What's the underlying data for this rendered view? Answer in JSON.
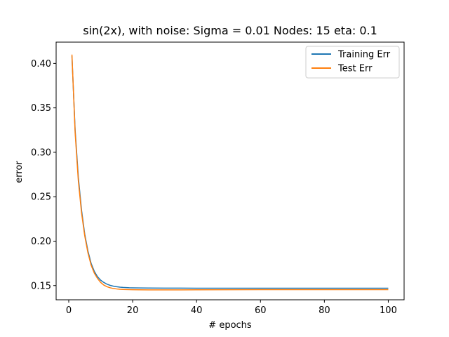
{
  "chart_data": {
    "type": "line",
    "title": "sin(2x), with noise: Sigma = 0.01 Nodes: 15 eta: 0.1",
    "xlabel": "# epochs",
    "ylabel": "error",
    "xlim": [
      -3.95,
      104.95
    ],
    "ylim": [
      0.134,
      0.424
    ],
    "xticks": [
      0,
      20,
      40,
      60,
      80,
      100
    ],
    "xtick_labels": [
      "0",
      "20",
      "40",
      "60",
      "80",
      "100"
    ],
    "yticks": [
      0.15,
      0.2,
      0.25,
      0.3,
      0.35,
      0.4
    ],
    "ytick_labels": [
      "0.15",
      "0.20",
      "0.25",
      "0.30",
      "0.35",
      "0.40"
    ],
    "grid": false,
    "legend_position": "top-right",
    "series": [
      {
        "name": "Training Err",
        "color": "#1f77b4",
        "x": [
          1,
          2,
          3,
          4,
          5,
          6,
          7,
          8,
          9,
          10,
          11,
          12,
          13,
          14,
          15,
          16,
          17,
          18,
          19,
          20,
          22,
          25,
          30,
          35,
          40,
          50,
          60,
          70,
          80,
          90,
          100
        ],
        "y": [
          0.408,
          0.325,
          0.272,
          0.235,
          0.208,
          0.189,
          0.175,
          0.166,
          0.16,
          0.156,
          0.1535,
          0.1515,
          0.1502,
          0.1493,
          0.1487,
          0.1482,
          0.1479,
          0.1477,
          0.1475,
          0.1474,
          0.1473,
          0.1472,
          0.1471,
          0.1471,
          0.147,
          0.147,
          0.147,
          0.147,
          0.147,
          0.147,
          0.147
        ]
      },
      {
        "name": "Test Err",
        "color": "#ff7f0e",
        "x": [
          1,
          2,
          3,
          4,
          5,
          6,
          7,
          8,
          9,
          10,
          11,
          12,
          13,
          14,
          15,
          16,
          17,
          18,
          19,
          20,
          22,
          25,
          30,
          35,
          40,
          50,
          60,
          70,
          80,
          90,
          100
        ],
        "y": [
          0.41,
          0.322,
          0.268,
          0.232,
          0.206,
          0.187,
          0.173,
          0.164,
          0.158,
          0.1535,
          0.1505,
          0.1487,
          0.1475,
          0.1467,
          0.1462,
          0.1459,
          0.1457,
          0.1456,
          0.1455,
          0.1454,
          0.1453,
          0.1452,
          0.1452,
          0.1452,
          0.1453,
          0.1454,
          0.1455,
          0.1455,
          0.1455,
          0.1455,
          0.1455
        ]
      }
    ]
  }
}
